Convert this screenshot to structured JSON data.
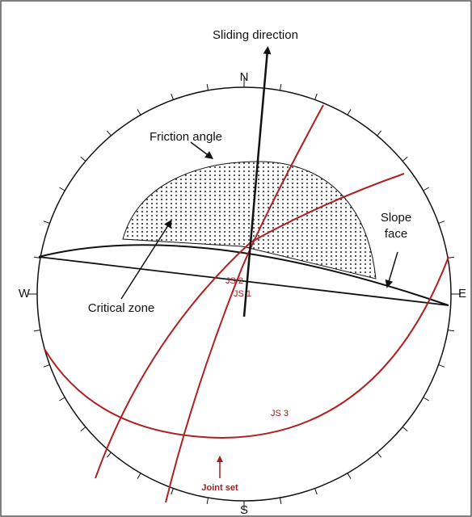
{
  "title": "Sliding direction",
  "compass": {
    "north": "N",
    "south": "S",
    "west": "W",
    "east": "E"
  },
  "labels": {
    "friction_angle": "Friction angle",
    "slope_face": "Slope face",
    "critical_zone": "Critical zone",
    "js1": "JS 1",
    "js2": "JS 2",
    "js3": "JS 3",
    "joint_set": "Joint set"
  }
}
